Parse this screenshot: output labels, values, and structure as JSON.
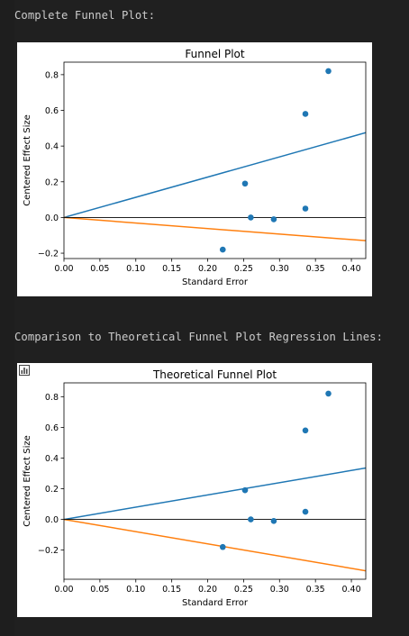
{
  "output": {
    "text_1": "Complete Funnel Plot:",
    "text_2": "Comparison to Theoretical Funnel Plot Regression Lines:"
  },
  "colors": {
    "points": "#1f77b4",
    "upper_line": "#1f77b4",
    "lower_line": "#ff7f0e",
    "zero_line": "#000000"
  },
  "icons": {
    "figure_toolbar": "bar-chart-icon"
  },
  "chart_data": [
    {
      "type": "scatter",
      "title": "Funnel Plot",
      "xlabel": "Standard Error",
      "ylabel": "Centered Effect Size",
      "xlim": [
        0.0,
        0.42
      ],
      "ylim": [
        -0.23,
        0.87
      ],
      "xticks": [
        "0.00",
        "0.05",
        "0.10",
        "0.15",
        "0.20",
        "0.25",
        "0.30",
        "0.35",
        "0.40"
      ],
      "xtick_values": [
        0,
        0.05,
        0.1,
        0.15,
        0.2,
        0.25,
        0.3,
        0.35,
        0.4
      ],
      "yticks": [
        "−0.2",
        "0.0",
        "0.2",
        "0.4",
        "0.6",
        "0.8"
      ],
      "ytick_values": [
        -0.2,
        0,
        0.2,
        0.4,
        0.6,
        0.8
      ],
      "grid": false,
      "series": [
        {
          "kind": "points",
          "x": [
            0.221,
            0.252,
            0.26,
            0.292,
            0.336,
            0.336,
            0.368
          ],
          "y": [
            -0.18,
            0.19,
            0.0,
            -0.01,
            0.05,
            0.58,
            0.82
          ]
        },
        {
          "kind": "line",
          "x": [
            0,
            0.42
          ],
          "y": [
            0,
            0.475
          ]
        },
        {
          "kind": "line",
          "x": [
            0,
            0.42
          ],
          "y": [
            0,
            -0.13
          ]
        },
        {
          "kind": "hline",
          "y": 0
        }
      ]
    },
    {
      "type": "scatter",
      "title": "Theoretical Funnel Plot",
      "xlabel": "Standard Error",
      "ylabel": "Centered Effect Size",
      "xlim": [
        0.0,
        0.42
      ],
      "ylim": [
        -0.39,
        0.89
      ],
      "xticks": [
        "0.00",
        "0.05",
        "0.10",
        "0.15",
        "0.20",
        "0.25",
        "0.30",
        "0.35",
        "0.40"
      ],
      "xtick_values": [
        0,
        0.05,
        0.1,
        0.15,
        0.2,
        0.25,
        0.3,
        0.35,
        0.4
      ],
      "yticks": [
        "−0.2",
        "0.0",
        "0.2",
        "0.4",
        "0.6",
        "0.8"
      ],
      "ytick_values": [
        -0.2,
        0,
        0.2,
        0.4,
        0.6,
        0.8
      ],
      "grid": false,
      "series": [
        {
          "kind": "points",
          "x": [
            0.221,
            0.252,
            0.26,
            0.292,
            0.336,
            0.336,
            0.368
          ],
          "y": [
            -0.18,
            0.19,
            0.0,
            -0.01,
            0.05,
            0.58,
            0.82
          ]
        },
        {
          "kind": "line",
          "x": [
            0,
            0.42
          ],
          "y": [
            0,
            0.335
          ]
        },
        {
          "kind": "line",
          "x": [
            0,
            0.42
          ],
          "y": [
            0,
            -0.335
          ]
        },
        {
          "kind": "hline",
          "y": 0
        }
      ]
    }
  ]
}
